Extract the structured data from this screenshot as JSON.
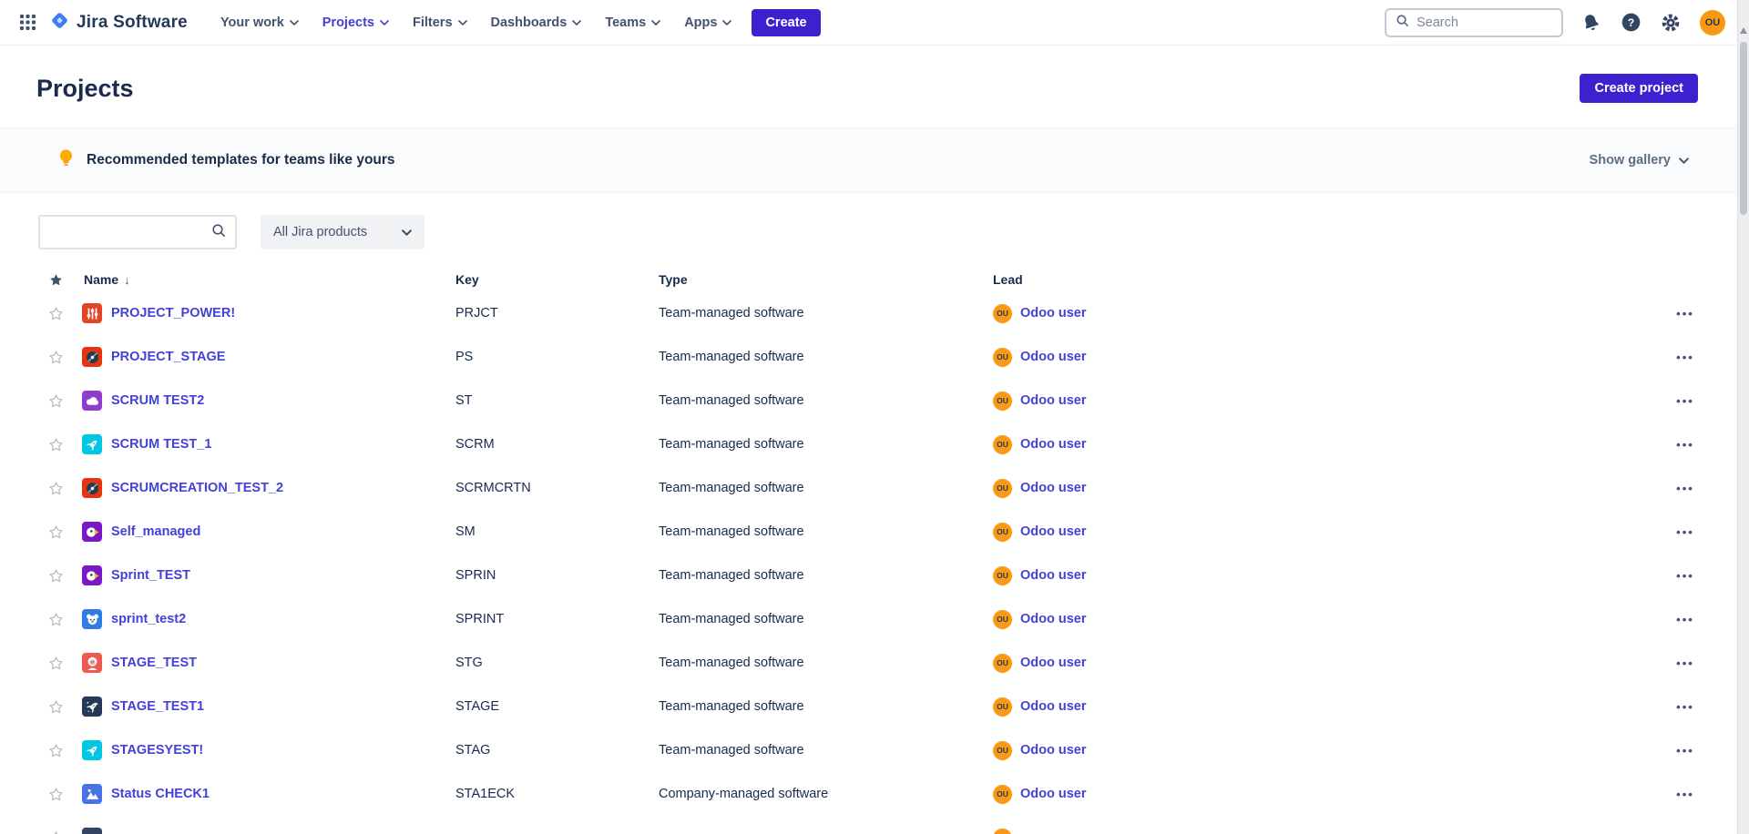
{
  "topbar": {
    "product_name": "Jira Software",
    "nav": [
      {
        "label": "Your work",
        "active": false
      },
      {
        "label": "Projects",
        "active": true
      },
      {
        "label": "Filters",
        "active": false
      },
      {
        "label": "Dashboards",
        "active": false
      },
      {
        "label": "Teams",
        "active": false
      },
      {
        "label": "Apps",
        "active": false
      }
    ],
    "create_label": "Create",
    "search_placeholder": "Search",
    "avatar_initials": "OU"
  },
  "header": {
    "title": "Projects",
    "create_project_label": "Create project"
  },
  "banner": {
    "title": "Recommended templates for teams like yours",
    "action_label": "Show gallery"
  },
  "filters": {
    "search_value": "",
    "product_filter_value": "All Jira products"
  },
  "table": {
    "columns": {
      "name": "Name",
      "key": "Key",
      "type": "Type",
      "lead": "Lead"
    },
    "sort_indicator": "↓",
    "rows": [
      {
        "name": "PROJECT_POWER!",
        "key": "PRJCT",
        "type": "Team-managed software",
        "lead": "Odoo user",
        "lead_initials": "OU",
        "avatar": {
          "icon": "equalizer-icon",
          "bg": "#e34425"
        }
      },
      {
        "name": "PROJECT_STAGE",
        "key": "PS",
        "type": "Team-managed software",
        "lead": "Odoo user",
        "lead_initials": "OU",
        "avatar": {
          "icon": "vinyl-icon",
          "bg": "#e5350e"
        }
      },
      {
        "name": "SCRUM TEST2",
        "key": "ST",
        "type": "Team-managed software",
        "lead": "Odoo user",
        "lead_initials": "OU",
        "avatar": {
          "icon": "cloud-icon",
          "bg": "#8f3dcf"
        }
      },
      {
        "name": "SCRUM TEST_1",
        "key": "SCRM",
        "type": "Team-managed software",
        "lead": "Odoo user",
        "lead_initials": "OU",
        "avatar": {
          "icon": "rocket-icon",
          "bg": "#00c7e5"
        }
      },
      {
        "name": "SCRUMCREATION_TEST_2",
        "key": "SCRMCRTN",
        "type": "Team-managed software",
        "lead": "Odoo user",
        "lead_initials": "OU",
        "avatar": {
          "icon": "vinyl-icon",
          "bg": "#e5350e"
        }
      },
      {
        "name": "Self_managed",
        "key": "SM",
        "type": "Team-managed software",
        "lead": "Odoo user",
        "lead_initials": "OU",
        "avatar": {
          "icon": "parrot-icon",
          "bg": "#7a18c9"
        }
      },
      {
        "name": "Sprint_TEST",
        "key": "SPRIN",
        "type": "Team-managed software",
        "lead": "Odoo user",
        "lead_initials": "OU",
        "avatar": {
          "icon": "parrot-icon",
          "bg": "#7a18c9"
        }
      },
      {
        "name": "sprint_test2",
        "key": "SPRINT",
        "type": "Team-managed software",
        "lead": "Odoo user",
        "lead_initials": "OU",
        "avatar": {
          "icon": "koala-icon",
          "bg": "#2e7ce6"
        }
      },
      {
        "name": "STAGE_TEST",
        "key": "STG",
        "type": "Team-managed software",
        "lead": "Odoo user",
        "lead_initials": "OU",
        "avatar": {
          "icon": "yeti-icon",
          "bg": "#ee5a52"
        }
      },
      {
        "name": "STAGE_TEST1",
        "key": "STAGE",
        "type": "Team-managed software",
        "lead": "Odoo user",
        "lead_initials": "OU",
        "avatar": {
          "icon": "rocket-night-icon",
          "bg": "#253858"
        }
      },
      {
        "name": "STAGESYEST!",
        "key": "STAG",
        "type": "Team-managed software",
        "lead": "Odoo user",
        "lead_initials": "OU",
        "avatar": {
          "icon": "rocket-icon",
          "bg": "#00c7e5"
        }
      },
      {
        "name": "Status CHECK1",
        "key": "STA1ECK",
        "type": "Company-managed software",
        "lead": "Odoo user",
        "lead_initials": "OU",
        "avatar": {
          "icon": "mountains-icon",
          "bg": "#4a72e8"
        }
      }
    ],
    "partial_row": {
      "avatar_bg": "#344563",
      "lead_initials": "OU"
    }
  },
  "icons": {
    "more_options": "•••",
    "topbar": [
      "app-switcher-icon",
      "search-icon",
      "notifications-icon",
      "help-icon",
      "settings-icon"
    ],
    "banner": "lightbulb-icon"
  },
  "colors": {
    "accent": "#3b22ce",
    "link": "#4342d6",
    "nav_active": "#4440d6",
    "heading": "#1c2b4a",
    "avatar_orange": "#fb9914",
    "bulb_orange": "#ffab00",
    "banner_bg": "#fafbfc"
  }
}
